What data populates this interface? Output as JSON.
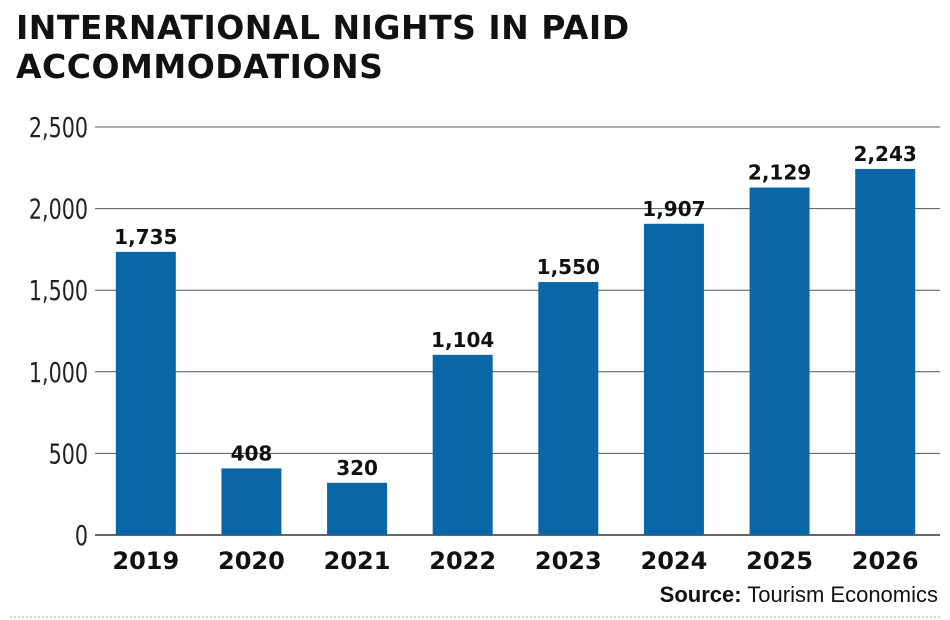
{
  "chart_data": {
    "type": "bar",
    "title": "INTERNATIONAL NIGHTS IN PAID ACCOMMODATIONS",
    "categories": [
      "2019",
      "2020",
      "2021",
      "2022",
      "2023",
      "2024",
      "2025",
      "2026"
    ],
    "values": [
      1735,
      408,
      320,
      1104,
      1550,
      1907,
      2129,
      2243
    ],
    "data_labels": [
      "1,735",
      "408",
      "320",
      "1,104",
      "1,550",
      "1,907",
      "2,129",
      "2,243"
    ],
    "yticks": [
      0,
      500,
      1000,
      1500,
      2000,
      2500
    ],
    "ytick_labels": [
      "0",
      "500",
      "1,000",
      "1,500",
      "2,000",
      "2,500"
    ],
    "ylim": [
      0,
      2500
    ],
    "xlabel": "",
    "ylabel": "",
    "grid": true,
    "bar_color": "#0a66a4"
  },
  "source": {
    "label": "Source:",
    "text": "Tourism Economics"
  }
}
